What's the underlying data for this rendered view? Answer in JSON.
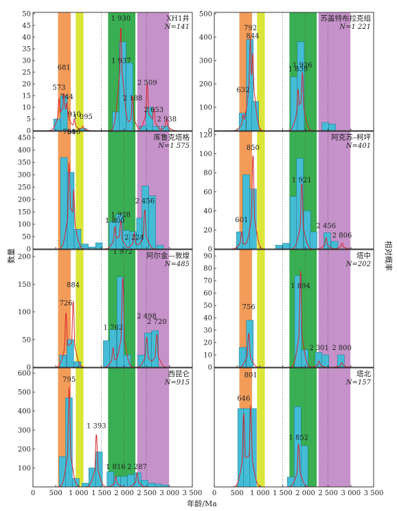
{
  "chart_data": {
    "type": "bar",
    "xlabel": "年龄/Ma",
    "ylabel_left": "数量",
    "ylabel_right": "相对概率",
    "x_ticks": [
      0,
      500,
      1000,
      1500,
      2000,
      2500,
      3000,
      3500
    ],
    "x_tick_labels": [
      "0",
      "500",
      "1 000",
      "1 500",
      "2 000",
      "2 500",
      "3 000",
      "3 500"
    ],
    "xlim": [
      0,
      3500
    ],
    "bin_width": 150,
    "bands": [
      {
        "from": 550,
        "to": 830,
        "color": "#f39c5a"
      },
      {
        "from": 940,
        "to": 1110,
        "color": "#dbe53a"
      },
      {
        "from": 1650,
        "to": 2250,
        "color": "#3aae52"
      },
      {
        "from": 2290,
        "to": 2990,
        "color": "#c592c9"
      }
    ],
    "dotted_lines": [
      1500,
      2000,
      2500
    ],
    "bar_color": "#45bcd6",
    "curve_color": "#d9242b",
    "panels": [
      {
        "id": "p1",
        "col": 0,
        "row": 0,
        "name": "XH1井",
        "n_label": "N=141",
        "yticks": [
          0,
          5,
          10,
          15,
          20,
          25,
          30,
          35,
          40,
          45,
          50
        ],
        "ylim": [
          0,
          50
        ],
        "bars": [
          [
            530,
            5
          ],
          [
            680,
            15
          ],
          [
            1100,
            1
          ],
          [
            1820,
            8
          ],
          [
            1970,
            38
          ],
          [
            2120,
            29
          ],
          [
            2420,
            2
          ],
          [
            2560,
            10
          ],
          [
            2700,
            2
          ],
          [
            2900,
            2
          ]
        ],
        "peaks": [
          [
            573,
            14
          ],
          [
            681,
            16
          ],
          [
            744,
            12
          ],
          [
            910,
            5
          ],
          [
            1095,
            2
          ],
          [
            1937,
            30
          ],
          [
            1930,
            45
          ],
          [
            2188,
            15
          ],
          [
            2509,
            20
          ],
          [
            2653,
            10
          ],
          [
            2938,
            5
          ]
        ],
        "labels": [
          [
            "573",
            573,
            17.5
          ],
          [
            "681",
            681,
            26
          ],
          [
            "744",
            744,
            13.5
          ],
          [
            "910",
            910,
            6
          ],
          [
            "1 095",
            1095,
            5
          ],
          [
            "1 937",
            1937,
            29
          ],
          [
            "1 930",
            1930,
            47
          ],
          [
            "2 188",
            2188,
            13
          ],
          [
            "2 509",
            2509,
            19.5
          ],
          [
            "2 653",
            2653,
            8
          ],
          [
            "2 938",
            2938,
            4
          ]
        ]
      },
      {
        "id": "p2",
        "col": 1,
        "row": 0,
        "name": "苏盖特布拉克组",
        "n_label": "N=1 221",
        "yticks": [
          0,
          100,
          200,
          300,
          400,
          500
        ],
        "ylim": [
          0,
          500
        ],
        "bars": [
          [
            620,
            75
          ],
          [
            780,
            390
          ],
          [
            900,
            125
          ],
          [
            1750,
            230
          ],
          [
            1900,
            380
          ],
          [
            2440,
            35
          ],
          [
            2590,
            28
          ]
        ],
        "peaks": [
          [
            632,
            70
          ],
          [
            792,
            400
          ],
          [
            844,
            330
          ],
          [
            1839,
            180
          ],
          [
            1936,
            250
          ]
        ],
        "labels": [
          [
            "632",
            632,
            165
          ],
          [
            "792",
            792,
            430
          ],
          [
            "844",
            844,
            395
          ],
          [
            "1 839",
            1839,
            255
          ],
          [
            "1 936",
            1936,
            270
          ]
        ]
      },
      {
        "id": "p3",
        "col": 0,
        "row": 1,
        "name": "库鲁克塔格",
        "n_label": "N=1 575",
        "yticks": [
          0,
          50,
          100,
          150,
          200,
          250,
          300,
          350,
          400,
          450
        ],
        "ylim": [
          0,
          470
        ],
        "bars": [
          [
            680,
            370
          ],
          [
            830,
            310
          ],
          [
            980,
            80
          ],
          [
            1140,
            20
          ],
          [
            1300,
            8
          ],
          [
            1450,
            25
          ],
          [
            1750,
            110
          ],
          [
            1900,
            140
          ],
          [
            2050,
            75
          ],
          [
            2200,
            70
          ],
          [
            2350,
            125
          ],
          [
            2470,
            255
          ],
          [
            2620,
            215
          ],
          [
            2790,
            15
          ]
        ],
        "peaks": [
          [
            794,
            350
          ],
          [
            896,
            240
          ],
          [
            1800,
            90
          ],
          [
            1928,
            115
          ],
          [
            2224,
            65
          ],
          [
            2456,
            160
          ]
        ],
        "labels": [
          [
            "794",
            794,
            465
          ],
          [
            "896",
            896,
            465
          ],
          [
            "1 800",
            1800,
            105
          ],
          [
            "1 928",
            1928,
            130
          ],
          [
            "2 224",
            2224,
            38
          ],
          [
            "2 456",
            2456,
            185
          ]
        ]
      },
      {
        "id": "p4",
        "col": 1,
        "row": 1,
        "name": "阿克苏–柯坪",
        "n_label": "N=401",
        "yticks": [
          0,
          20,
          40,
          60,
          80,
          100,
          120
        ],
        "ylim": [
          0,
          122
        ],
        "bars": [
          [
            560,
            18
          ],
          [
            700,
            78
          ],
          [
            850,
            63
          ],
          [
            1420,
            4
          ],
          [
            1580,
            6
          ],
          [
            1740,
            55
          ],
          [
            1880,
            95
          ],
          [
            2040,
            40
          ],
          [
            2180,
            18
          ],
          [
            2480,
            17
          ],
          [
            2640,
            8
          ]
        ],
        "peaks": [
          [
            601,
            18
          ],
          [
            850,
            100
          ],
          [
            1921,
            70
          ],
          [
            2456,
            12
          ],
          [
            2806,
            6
          ]
        ],
        "labels": [
          [
            "601",
            601,
            28
          ],
          [
            "850",
            850,
            104
          ],
          [
            "1 921",
            1921,
            70
          ],
          [
            "2 456",
            2456,
            22
          ],
          [
            "2 806",
            2806,
            12
          ]
        ]
      },
      {
        "id": "p5",
        "col": 0,
        "row": 2,
        "name": "阿尔金—敦煌",
        "n_label": "N=485",
        "yticks": [
          0,
          50,
          100,
          150,
          200
        ],
        "ylim": [
          0,
          210
        ],
        "bars": [
          [
            660,
            22
          ],
          [
            820,
            50
          ],
          [
            980,
            10
          ],
          [
            1620,
            48
          ],
          [
            1760,
            68
          ],
          [
            1920,
            163
          ],
          [
            2070,
            22
          ],
          [
            2380,
            22
          ],
          [
            2530,
            62
          ],
          [
            2680,
            66
          ]
        ],
        "peaks": [
          [
            726,
            100
          ],
          [
            884,
            120
          ],
          [
            1762,
            35
          ],
          [
            1972,
            165
          ],
          [
            2498,
            55
          ],
          [
            2720,
            60
          ]
        ],
        "labels": [
          [
            "726",
            726,
            112
          ],
          [
            "884",
            884,
            145
          ],
          [
            "1 762",
            1762,
            68
          ],
          [
            "1 972",
            1972,
            205
          ],
          [
            "2 498",
            2498,
            88
          ],
          [
            "2 720",
            2720,
            78
          ]
        ]
      },
      {
        "id": "p6",
        "col": 1,
        "row": 2,
        "name": "塔中",
        "n_label": "N=202",
        "yticks": [
          0,
          10,
          20,
          30,
          40,
          50,
          60,
          70,
          80,
          90
        ],
        "ylim": [
          0,
          94
        ],
        "bars": [
          [
            620,
            16
          ],
          [
            780,
            38
          ],
          [
            1840,
            74
          ],
          [
            1990,
            14
          ],
          [
            2290,
            12
          ],
          [
            2440,
            10
          ],
          [
            2780,
            10
          ]
        ],
        "peaks": [
          [
            756,
            28
          ],
          [
            1894,
            78
          ],
          [
            2301,
            5
          ],
          [
            2800,
            4
          ]
        ],
        "labels": [
          [
            "756",
            756,
            47
          ],
          [
            "1 894",
            1894,
            64
          ],
          [
            "2 301",
            2301,
            14
          ],
          [
            "2 800",
            2800,
            14
          ]
        ]
      },
      {
        "id": "p7",
        "col": 0,
        "row": 3,
        "name": "西昆仑",
        "n_label": "N=915",
        "yticks": [
          100,
          200,
          300,
          400,
          500,
          600
        ],
        "ylim": [
          0,
          620
        ],
        "bars": [
          [
            650,
            160
          ],
          [
            790,
            470
          ],
          [
            940,
            45
          ],
          [
            1150,
            20
          ],
          [
            1300,
            100
          ],
          [
            1450,
            185
          ],
          [
            1700,
            80
          ],
          [
            1850,
            55
          ],
          [
            2000,
            55
          ],
          [
            2150,
            65
          ],
          [
            2300,
            75
          ],
          [
            2450,
            35
          ],
          [
            2600,
            20
          ],
          [
            2750,
            15
          ],
          [
            2900,
            10
          ]
        ],
        "peaks": [
          [
            795,
            530
          ],
          [
            1393,
            280
          ],
          [
            1816,
            55
          ],
          [
            2287,
            75
          ]
        ],
        "labels": [
          [
            "795",
            795,
            555
          ],
          [
            "1 393",
            1393,
            310
          ],
          [
            "1 816",
            1816,
            95
          ],
          [
            "2 287",
            2287,
            95
          ]
        ]
      },
      {
        "id": "p8",
        "col": 1,
        "row": 3,
        "name": "塔北",
        "n_label": "N=157",
        "yticks": [],
        "ylim": [
          0,
          60
        ],
        "bars": [
          [
            590,
            40
          ],
          [
            720,
            40
          ],
          [
            850,
            40
          ],
          [
            1680,
            5
          ],
          [
            1830,
            41
          ],
          [
            1980,
            21
          ]
        ],
        "peaks": [
          [
            646,
            38
          ],
          [
            801,
            42
          ],
          [
            1852,
            22
          ]
        ],
        "labels": [
          [
            "646",
            646,
            44
          ],
          [
            "801",
            801,
            56
          ],
          [
            "1 852",
            1852,
            24
          ]
        ]
      }
    ]
  }
}
